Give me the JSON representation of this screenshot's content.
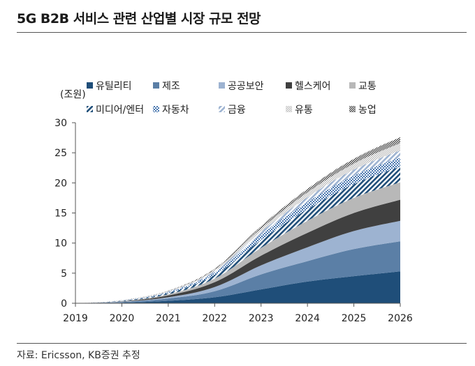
{
  "page": {
    "title": "5G B2B 서비스 관련 산업별 시장 규모 전망",
    "source": "자료: Ericsson, KB증권 추정"
  },
  "chart_data": {
    "type": "area",
    "stacked": true,
    "title": "",
    "xlabel": "",
    "ylabel": "(조원)",
    "x": [
      "2019",
      "2020",
      "2021",
      "2022",
      "2023",
      "2024",
      "2025",
      "2026"
    ],
    "ylim": [
      0,
      30
    ],
    "yticks": [
      0,
      5,
      10,
      15,
      20,
      25,
      30
    ],
    "grid": false,
    "legend_position": "top",
    "series": [
      {
        "name": "유틸리티",
        "color": "#1f4e79",
        "pattern": "solid",
        "values": [
          0.0,
          0.1,
          0.4,
          1.0,
          2.3,
          3.6,
          4.5,
          5.3
        ]
      },
      {
        "name": "제조",
        "color": "#5b7fa6",
        "pattern": "solid",
        "values": [
          0.0,
          0.1,
          0.4,
          1.0,
          2.5,
          3.4,
          4.5,
          5.0
        ]
      },
      {
        "name": "공공보안",
        "color": "#9db3d1",
        "pattern": "solid",
        "values": [
          0.0,
          0.05,
          0.2,
          0.7,
          1.5,
          2.3,
          3.0,
          3.4
        ]
      },
      {
        "name": "헬스케어",
        "color": "#404040",
        "pattern": "solid",
        "values": [
          0.0,
          0.05,
          0.3,
          0.8,
          1.6,
          2.4,
          3.0,
          3.5
        ]
      },
      {
        "name": "교통",
        "color": "#b8b8b8",
        "pattern": "solid",
        "values": [
          0.0,
          0.05,
          0.2,
          0.6,
          1.3,
          2.0,
          2.5,
          2.9
        ]
      },
      {
        "name": "미디어/엔터",
        "color": "#1f4e79",
        "pattern": "diagonal",
        "values": [
          0.0,
          0.05,
          0.2,
          0.6,
          1.3,
          1.9,
          2.3,
          2.6
        ]
      },
      {
        "name": "자동차",
        "color": "#4a78b0",
        "pattern": "dots",
        "values": [
          0.0,
          0.05,
          0.15,
          0.4,
          0.9,
          1.2,
          1.4,
          1.5
        ]
      },
      {
        "name": "금융",
        "color": "#9db3d1",
        "pattern": "diagonal",
        "values": [
          0.0,
          0.02,
          0.1,
          0.25,
          0.5,
          0.8,
          1.0,
          1.2
        ]
      },
      {
        "name": "유통",
        "color": "#b8b8b8",
        "pattern": "checker",
        "values": [
          0.0,
          0.02,
          0.1,
          0.25,
          0.5,
          0.8,
          1.0,
          1.2
        ]
      },
      {
        "name": "농업",
        "color": "#333333",
        "pattern": "checker",
        "values": [
          0.0,
          0.02,
          0.05,
          0.15,
          0.4,
          0.6,
          0.8,
          1.0
        ]
      }
    ]
  }
}
